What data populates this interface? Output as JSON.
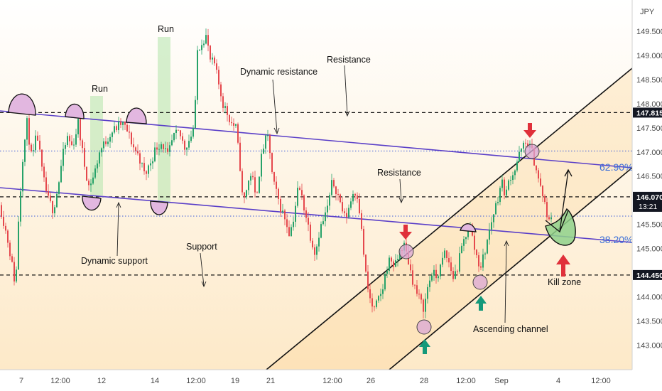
{
  "chart_data": {
    "type": "candlestick",
    "currency": "JPY",
    "y_ticks": [
      143.0,
      143.5,
      144.0,
      144.5,
      145.0,
      145.5,
      146.0,
      146.5,
      147.0,
      147.5,
      148.0,
      148.5,
      149.0,
      149.5
    ],
    "x_ticks": [
      "7",
      "12:00",
      "12",
      "14",
      "12:00",
      "19",
      "21",
      "12:00",
      "26",
      "28",
      "12:00",
      "Sep",
      "4",
      "12:00"
    ],
    "ylim": [
      142.8,
      150.05
    ],
    "price_tags": {
      "resistance_level": "147.815",
      "current_price": "146.070",
      "countdown": "13:21",
      "support_level": "144.450"
    },
    "levels": {
      "resistance": 147.815,
      "current": 146.07,
      "support": 144.45,
      "dotted_upper": 147.02,
      "dotted_lower": 145.67
    },
    "fib_labels": {
      "upper": "62.90%",
      "lower": "38.20%"
    },
    "annotations": {
      "run_1": "Run",
      "run_2": "Run",
      "dynamic_resistance": "Dynamic resistance",
      "resistance_top": "Resistance",
      "resistance_mid": "Resistance",
      "dynamic_support": "Dynamic support",
      "support": "Support",
      "ascending_channel": "Ascending channel",
      "kill_zone": "Kill zone"
    },
    "price_path": [
      [
        0,
        145.9
      ],
      [
        12,
        145.1
      ],
      [
        22,
        144.2
      ],
      [
        26,
        145.6
      ],
      [
        32,
        146.9
      ],
      [
        38,
        147.6
      ],
      [
        45,
        146.8
      ],
      [
        52,
        147.4
      ],
      [
        60,
        146.5
      ],
      [
        68,
        146.0
      ],
      [
        75,
        145.8
      ],
      [
        82,
        146.3
      ],
      [
        88,
        146.9
      ],
      [
        95,
        147.3
      ],
      [
        102,
        147.1
      ],
      [
        110,
        147.6
      ],
      [
        118,
        146.8
      ],
      [
        125,
        146.3
      ],
      [
        132,
        146.5
      ],
      [
        140,
        147.0
      ],
      [
        148,
        147.2
      ],
      [
        156,
        147.4
      ],
      [
        164,
        147.5
      ],
      [
        172,
        147.6
      ],
      [
        180,
        147.4
      ],
      [
        188,
        147.1
      ],
      [
        196,
        146.9
      ],
      [
        204,
        146.5
      ],
      [
        212,
        146.8
      ],
      [
        220,
        147.1
      ],
      [
        228,
        147.2
      ],
      [
        236,
        146.9
      ],
      [
        244,
        147.3
      ],
      [
        252,
        147.4
      ],
      [
        260,
        147.1
      ],
      [
        268,
        147.3
      ],
      [
        274,
        147.6
      ],
      [
        278,
        149.1
      ],
      [
        284,
        149.3
      ],
      [
        290,
        149.4
      ],
      [
        296,
        148.9
      ],
      [
        302,
        148.8
      ],
      [
        308,
        148.4
      ],
      [
        314,
        148.0
      ],
      [
        320,
        147.8
      ],
      [
        326,
        147.6
      ],
      [
        332,
        147.5
      ],
      [
        338,
        146.7
      ],
      [
        342,
        145.9
      ],
      [
        348,
        146.3
      ],
      [
        354,
        146.6
      ],
      [
        360,
        146.0
      ],
      [
        366,
        146.7
      ],
      [
        372,
        147.2
      ],
      [
        378,
        147.3
      ],
      [
        384,
        146.4
      ],
      [
        390,
        146.1
      ],
      [
        396,
        145.8
      ],
      [
        402,
        145.6
      ],
      [
        408,
        145.3
      ],
      [
        414,
        145.7
      ],
      [
        420,
        146.3
      ],
      [
        426,
        146.0
      ],
      [
        432,
        145.6
      ],
      [
        438,
        145.2
      ],
      [
        444,
        144.9
      ],
      [
        450,
        145.4
      ],
      [
        456,
        145.6
      ],
      [
        462,
        145.9
      ],
      [
        468,
        146.4
      ],
      [
        474,
        146.2
      ],
      [
        480,
        145.9
      ],
      [
        486,
        145.6
      ],
      [
        492,
        145.9
      ],
      [
        498,
        146.2
      ],
      [
        504,
        146.1
      ],
      [
        508,
        145.5
      ],
      [
        512,
        144.9
      ],
      [
        516,
        144.3
      ],
      [
        520,
        144.0
      ],
      [
        526,
        143.7
      ],
      [
        532,
        143.9
      ],
      [
        538,
        144.1
      ],
      [
        544,
        144.6
      ],
      [
        550,
        144.8
      ],
      [
        556,
        144.6
      ],
      [
        562,
        144.9
      ],
      [
        568,
        145.1
      ],
      [
        574,
        144.8
      ],
      [
        580,
        144.4
      ],
      [
        586,
        144.1
      ],
      [
        592,
        143.9
      ],
      [
        597,
        143.75
      ],
      [
        602,
        144.2
      ],
      [
        608,
        144.5
      ],
      [
        614,
        144.4
      ],
      [
        620,
        144.6
      ],
      [
        626,
        144.9
      ],
      [
        632,
        144.7
      ],
      [
        638,
        144.4
      ],
      [
        644,
        144.6
      ],
      [
        650,
        145.0
      ],
      [
        656,
        145.3
      ],
      [
        660,
        145.6
      ],
      [
        664,
        145.3
      ],
      [
        668,
        145.0
      ],
      [
        672,
        144.8
      ],
      [
        676,
        144.6
      ],
      [
        682,
        144.9
      ],
      [
        688,
        145.3
      ],
      [
        694,
        145.7
      ],
      [
        700,
        146.0
      ],
      [
        706,
        146.4
      ],
      [
        712,
        146.1
      ],
      [
        718,
        146.5
      ],
      [
        724,
        146.6
      ],
      [
        730,
        146.9
      ],
      [
        736,
        147.1
      ],
      [
        742,
        147.2
      ],
      [
        748,
        147.05
      ],
      [
        754,
        146.7
      ],
      [
        760,
        146.3
      ],
      [
        766,
        146.0
      ],
      [
        770,
        145.6
      ],
      [
        776,
        145.7
      ]
    ]
  }
}
